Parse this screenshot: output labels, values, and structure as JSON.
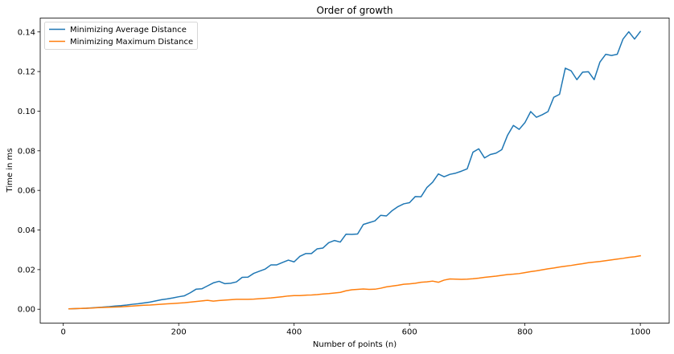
{
  "chart_data": {
    "type": "line",
    "title": "Order of growth",
    "xlabel": "Number of points (n)",
    "ylabel": "Time in ms",
    "xlim": [
      -40,
      1050
    ],
    "ylim": [
      -0.007,
      0.147
    ],
    "xticks": [
      0,
      200,
      400,
      600,
      800,
      1000
    ],
    "yticks": [
      0.0,
      0.02,
      0.04,
      0.06,
      0.08,
      0.1,
      0.12,
      0.14
    ],
    "ytick_labels": [
      "0.00",
      "0.02",
      "0.04",
      "0.06",
      "0.08",
      "0.10",
      "0.12",
      "0.14"
    ],
    "grid": false,
    "legend_position": "upper-left",
    "x": [
      10,
      20,
      30,
      40,
      50,
      60,
      70,
      80,
      90,
      100,
      110,
      120,
      130,
      140,
      150,
      160,
      170,
      180,
      190,
      200,
      210,
      220,
      230,
      240,
      250,
      260,
      270,
      280,
      290,
      300,
      310,
      320,
      330,
      340,
      350,
      360,
      370,
      380,
      390,
      400,
      410,
      420,
      430,
      440,
      450,
      460,
      470,
      480,
      490,
      500,
      510,
      520,
      530,
      540,
      550,
      560,
      570,
      580,
      590,
      600,
      610,
      620,
      630,
      640,
      650,
      660,
      670,
      680,
      690,
      700,
      710,
      720,
      730,
      740,
      750,
      760,
      770,
      780,
      790,
      800,
      810,
      820,
      830,
      840,
      850,
      860,
      870,
      880,
      890,
      900,
      910,
      920,
      930,
      940,
      950,
      960,
      970,
      980,
      990,
      1000
    ],
    "series": [
      {
        "name": "Minimizing Average Distance",
        "color": "#1f77b4",
        "values": [
          0.0002,
          0.0003,
          0.0004,
          0.0005,
          0.0007,
          0.0009,
          0.0011,
          0.0013,
          0.0016,
          0.0018,
          0.0021,
          0.0025,
          0.0028,
          0.0032,
          0.0036,
          0.0042,
          0.0048,
          0.0052,
          0.0057,
          0.0063,
          0.0068,
          0.0083,
          0.0101,
          0.0103,
          0.0118,
          0.0133,
          0.0141,
          0.0129,
          0.0131,
          0.0138,
          0.0161,
          0.0162,
          0.0181,
          0.0192,
          0.0203,
          0.0224,
          0.0224,
          0.0236,
          0.0248,
          0.0239,
          0.0267,
          0.0281,
          0.0281,
          0.0305,
          0.0309,
          0.0336,
          0.0347,
          0.0339,
          0.0379,
          0.0378,
          0.038,
          0.0428,
          0.0437,
          0.0446,
          0.0474,
          0.0471,
          0.0498,
          0.0518,
          0.0532,
          0.0538,
          0.0569,
          0.0568,
          0.0614,
          0.0641,
          0.0683,
          0.0669,
          0.0681,
          0.0687,
          0.0697,
          0.0709,
          0.0793,
          0.081,
          0.0764,
          0.0781,
          0.0788,
          0.0806,
          0.0879,
          0.0928,
          0.0908,
          0.0942,
          0.0998,
          0.0969,
          0.0982,
          0.0998,
          0.107,
          0.1085,
          0.1217,
          0.1204,
          0.1159,
          0.1197,
          0.1199,
          0.1159,
          0.1248,
          0.1287,
          0.1281,
          0.1287,
          0.1364,
          0.1401,
          0.1364,
          0.1402
        ]
      },
      {
        "name": "Minimizing Maximum Distance",
        "color": "#ff7f0e",
        "values": [
          0.0002,
          0.0003,
          0.0004,
          0.0005,
          0.0006,
          0.0008,
          0.0009,
          0.001,
          0.0011,
          0.0012,
          0.0014,
          0.0016,
          0.0018,
          0.002,
          0.0021,
          0.0023,
          0.0025,
          0.0027,
          0.0029,
          0.0031,
          0.0033,
          0.0036,
          0.0039,
          0.0042,
          0.0045,
          0.0041,
          0.0044,
          0.0046,
          0.0048,
          0.005,
          0.005,
          0.005,
          0.0051,
          0.0053,
          0.0055,
          0.0057,
          0.006,
          0.0063,
          0.0067,
          0.0069,
          0.0069,
          0.0071,
          0.0072,
          0.0074,
          0.0077,
          0.0079,
          0.0082,
          0.0085,
          0.0093,
          0.0098,
          0.01,
          0.0102,
          0.01,
          0.0101,
          0.0106,
          0.0113,
          0.0117,
          0.0121,
          0.0126,
          0.0128,
          0.0131,
          0.0136,
          0.0138,
          0.0142,
          0.0136,
          0.0147,
          0.0153,
          0.0152,
          0.0151,
          0.0152,
          0.0154,
          0.0157,
          0.0161,
          0.0164,
          0.0167,
          0.0171,
          0.0175,
          0.0177,
          0.018,
          0.0185,
          0.019,
          0.0194,
          0.0199,
          0.0204,
          0.0208,
          0.0213,
          0.0217,
          0.0221,
          0.0226,
          0.023,
          0.0235,
          0.0238,
          0.0241,
          0.0245,
          0.0249,
          0.0253,
          0.0257,
          0.0262,
          0.0265,
          0.027
        ]
      }
    ]
  }
}
